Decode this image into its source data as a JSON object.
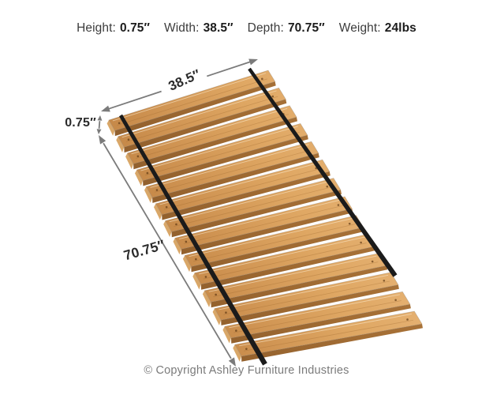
{
  "specs": {
    "items": [
      {
        "label": "Height:",
        "value": "0.75″"
      },
      {
        "label": "Width:",
        "value": "38.5″"
      },
      {
        "label": "Depth:",
        "value": "70.75″"
      },
      {
        "label": "Weight:",
        "value": "24lbs"
      }
    ]
  },
  "annotations": {
    "width_label": "38.5″",
    "thickness_label": "0.75″",
    "depth_label": "70.75″"
  },
  "product": {
    "name": "wooden roll slats with straps",
    "slat_count": 14,
    "strap_count": 2,
    "colors": {
      "wood_dark": "#b97b3c",
      "wood_mid1": "#cd9150",
      "wood_mid2": "#dfa763",
      "wood_light": "#e7b476",
      "wood_end": "#d9a768",
      "face_dark": "#8a5a2a",
      "face_mid": "#a06b33",
      "face_light": "#b27a3c",
      "strap": "#1b1b1b",
      "arrow": "#7b7b7b",
      "outline": "rgba(135,125,115,0.40)",
      "grain": "rgba(150,95,40,0.30)",
      "sheen": "rgba(255,240,215,0.55)",
      "hole": "rgba(87,51,16,0.65)"
    }
  },
  "footer": {
    "copyright": "© Copyright Ashley Furniture Industries"
  }
}
